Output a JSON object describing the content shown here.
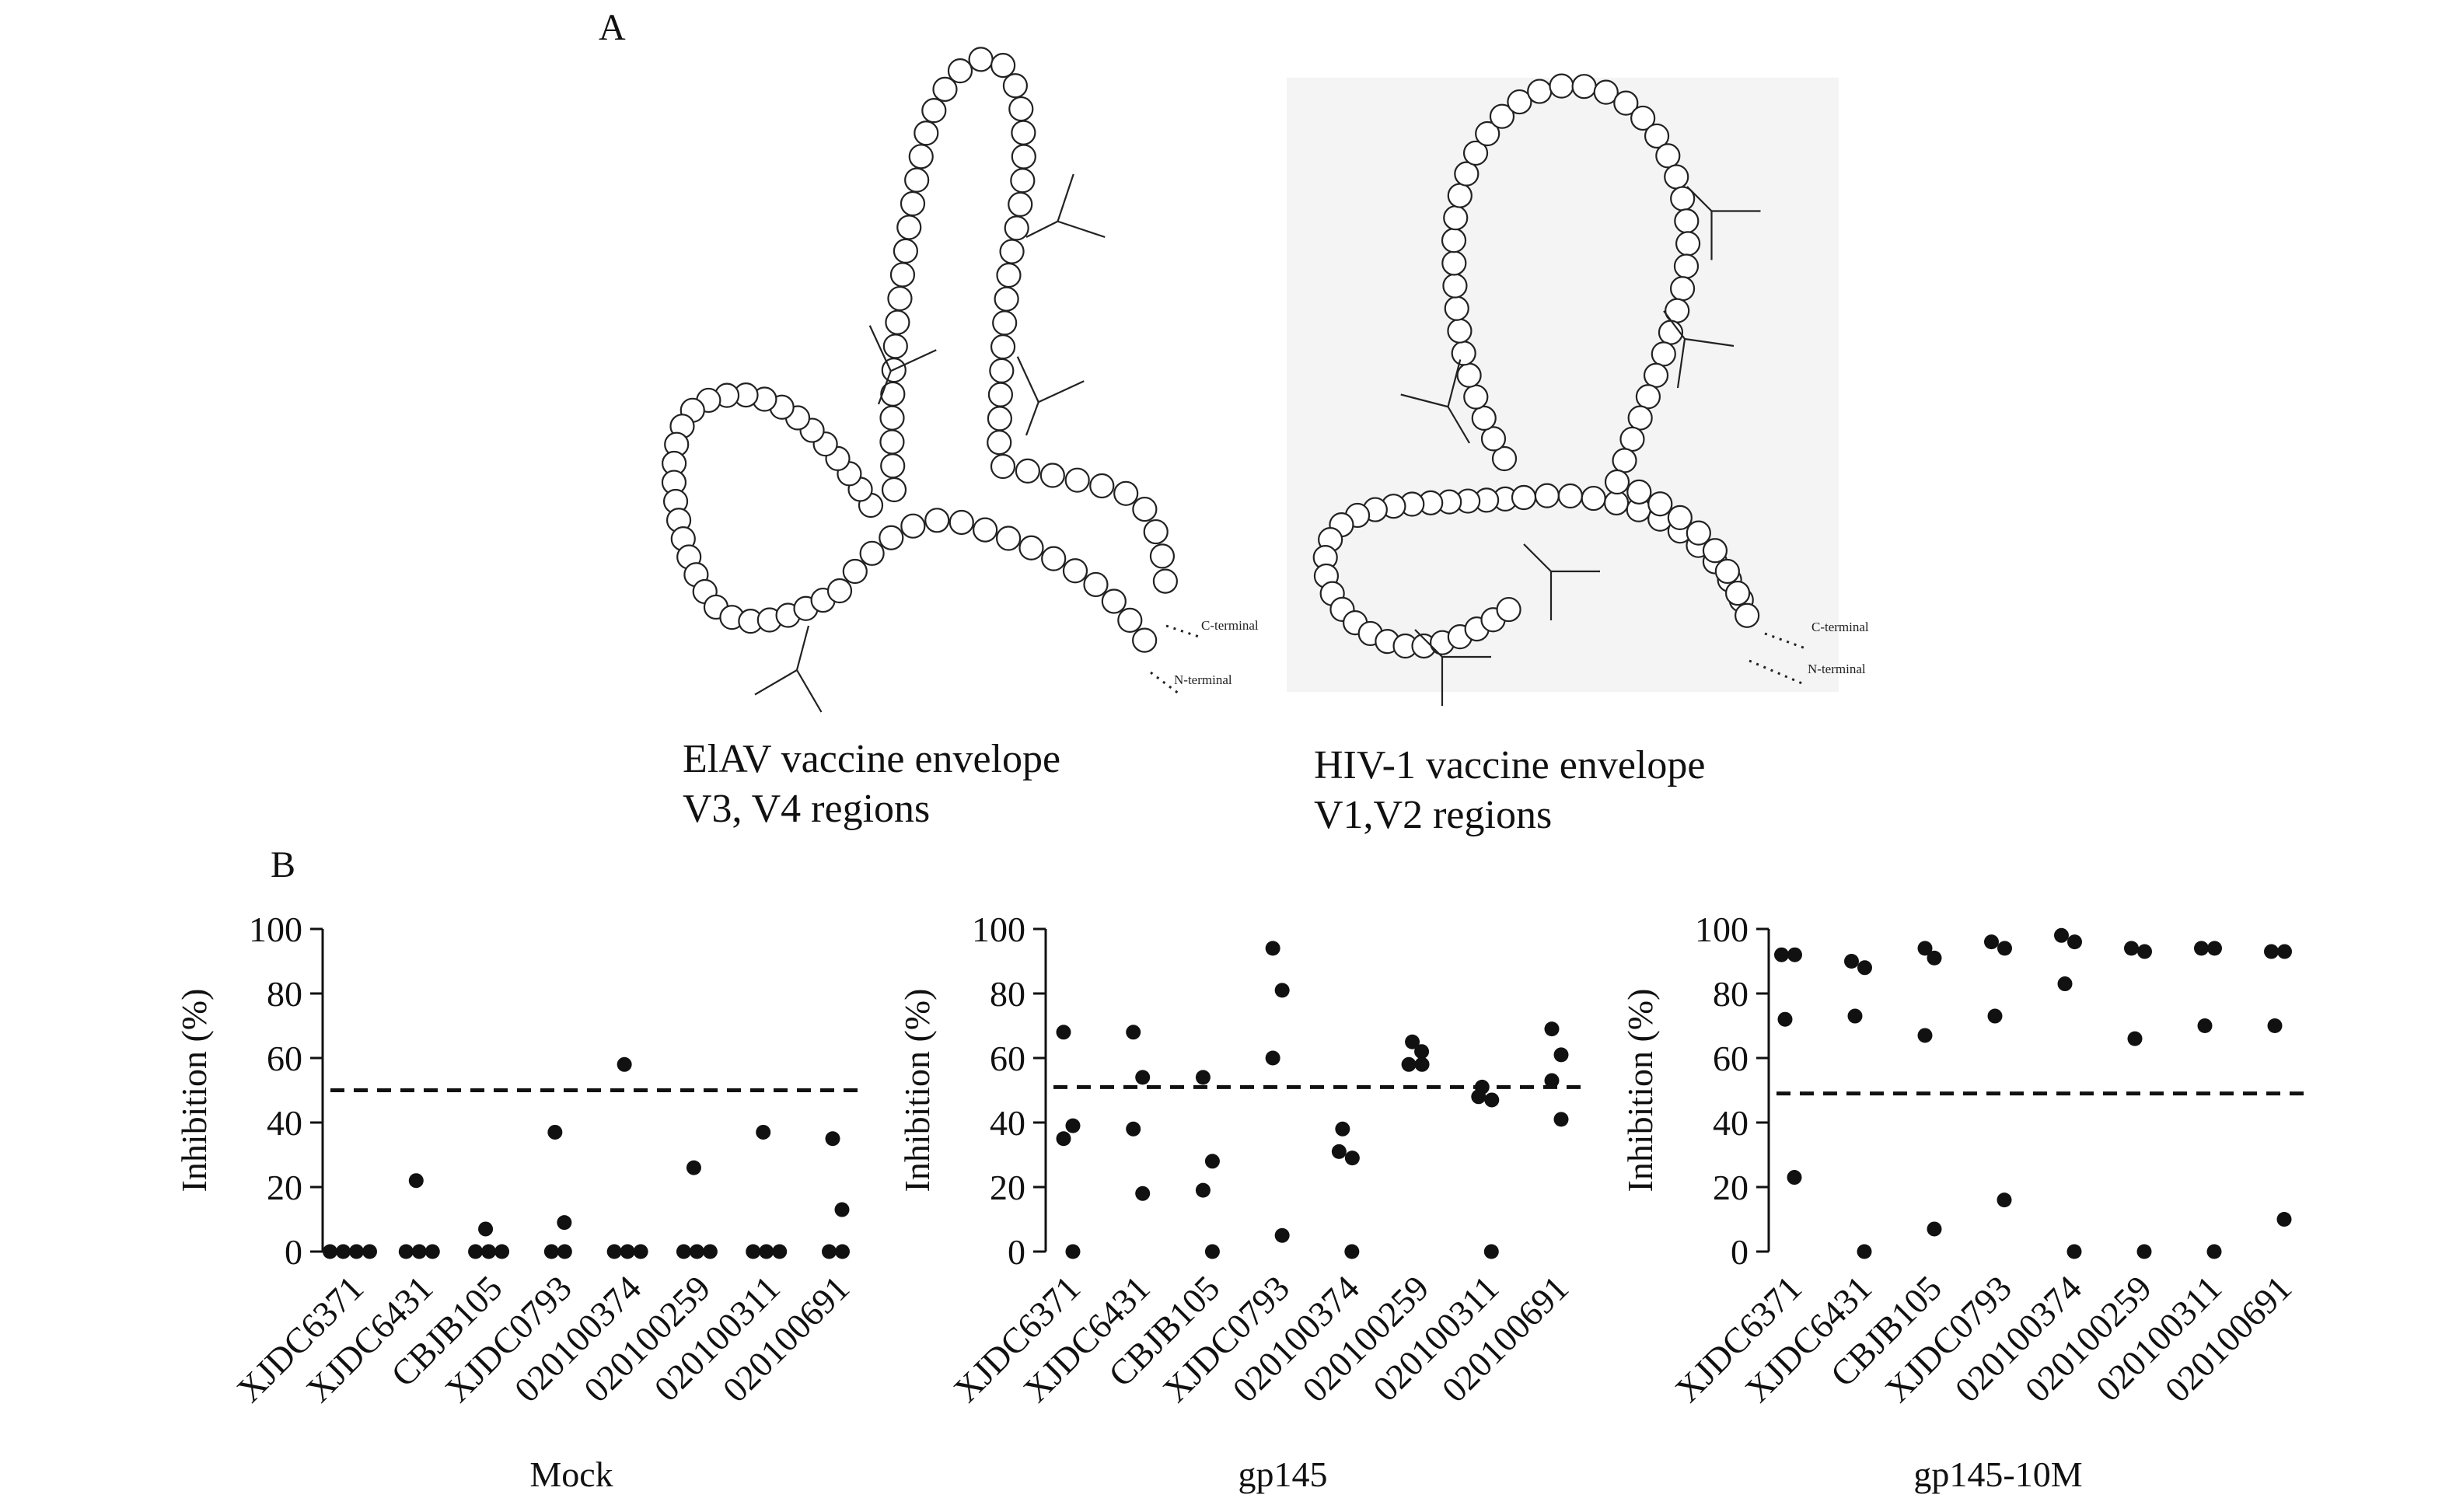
{
  "panel_a": {
    "label": "A",
    "left_diagram": {
      "caption_line1": "ElAV vaccine envelope",
      "caption_line2": "V3, V4 regions",
      "c_terminal": "C-terminal",
      "n_terminal": "N-terminal"
    },
    "right_diagram": {
      "caption_line1": "HIV-1 vaccine envelope",
      "caption_line2": "V1,V2 regions",
      "c_terminal": "C-terminal",
      "n_terminal": "N-terminal"
    }
  },
  "panel_b": {
    "label": "B"
  },
  "chart_data": [
    {
      "type": "scatter",
      "title": "Mock",
      "ylabel": "Inhibition (%)",
      "ylim": [
        0,
        100
      ],
      "yticks": [
        0,
        20,
        40,
        60,
        80,
        100
      ],
      "threshold": 50,
      "categories": [
        "XJDC6371",
        "XJDC6431",
        "CBJB105",
        "XJDC0793",
        "020100374",
        "020100259",
        "020100311",
        "020100691"
      ],
      "values": [
        [
          0,
          0,
          0,
          0
        ],
        [
          22,
          0,
          0,
          0
        ],
        [
          7,
          0,
          0,
          0
        ],
        [
          37,
          9,
          0,
          0
        ],
        [
          58,
          0,
          0,
          0
        ],
        [
          26,
          0,
          0,
          0
        ],
        [
          37,
          0,
          0,
          0
        ],
        [
          35,
          13,
          0,
          0
        ]
      ]
    },
    {
      "type": "scatter",
      "title": "gp145",
      "ylabel": "Inhibition (%)",
      "ylim": [
        0,
        100
      ],
      "yticks": [
        0,
        20,
        40,
        60,
        80,
        100
      ],
      "threshold": 51,
      "categories": [
        "XJDC6371",
        "XJDC6431",
        "CBJB105",
        "XJDC0793",
        "020100374",
        "020100259",
        "020100311",
        "020100691"
      ],
      "values": [
        [
          68,
          39,
          35,
          0
        ],
        [
          68,
          54,
          38,
          18
        ],
        [
          54,
          28,
          19,
          0
        ],
        [
          94,
          81,
          60,
          5
        ],
        [
          38,
          31,
          29,
          0
        ],
        [
          65,
          62,
          58,
          58
        ],
        [
          51,
          48,
          47,
          0
        ],
        [
          69,
          61,
          53,
          41
        ]
      ]
    },
    {
      "type": "scatter",
      "title": "gp145-10M",
      "ylabel": "Inhibition (%)",
      "ylim": [
        0,
        100
      ],
      "yticks": [
        0,
        20,
        40,
        60,
        80,
        100
      ],
      "threshold": 49,
      "categories": [
        "XJDC6371",
        "XJDC6431",
        "CBJB105",
        "XJDC0793",
        "020100374",
        "020100259",
        "020100311",
        "020100691"
      ],
      "values": [
        [
          92,
          92,
          72,
          23
        ],
        [
          90,
          88,
          73,
          0
        ],
        [
          94,
          91,
          67,
          7
        ],
        [
          96,
          94,
          73,
          16
        ],
        [
          98,
          96,
          83,
          0
        ],
        [
          94,
          93,
          66,
          0
        ],
        [
          94,
          94,
          70,
          0
        ],
        [
          93,
          93,
          70,
          10
        ]
      ]
    }
  ]
}
